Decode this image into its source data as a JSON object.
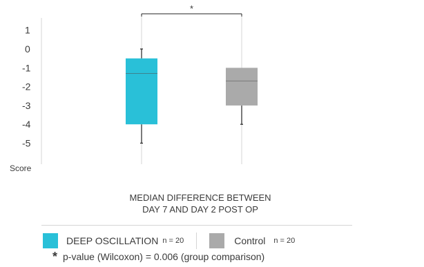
{
  "chart_data": {
    "type": "boxplot",
    "ylabel": "Score",
    "ylim": [
      -6,
      1.8
    ],
    "yticks": [
      1,
      0,
      -1,
      -2,
      -3,
      -4,
      -5
    ],
    "caption_line1": "MEDIAN DIFFERENCE BETWEEN",
    "caption_line2": "DAY 7 AND DAY 2 POST OP",
    "significance_marker": "*",
    "series": [
      {
        "name": "DEEP OSCILLATION",
        "n": "n = 20",
        "color": "#29c0d8",
        "whisker_low": -5,
        "q1": -4,
        "median": -1.3,
        "q3": -0.5,
        "whisker_high": 0
      },
      {
        "name": "Control",
        "n": "n = 20",
        "color": "#aaaaaa",
        "whisker_low": -4,
        "q1": -3,
        "median": -1.7,
        "q3": -1,
        "whisker_high": -1
      }
    ]
  },
  "footnote": {
    "star": "*",
    "text": "p-value (Wilcoxon) = 0.006 (group comparison)"
  }
}
